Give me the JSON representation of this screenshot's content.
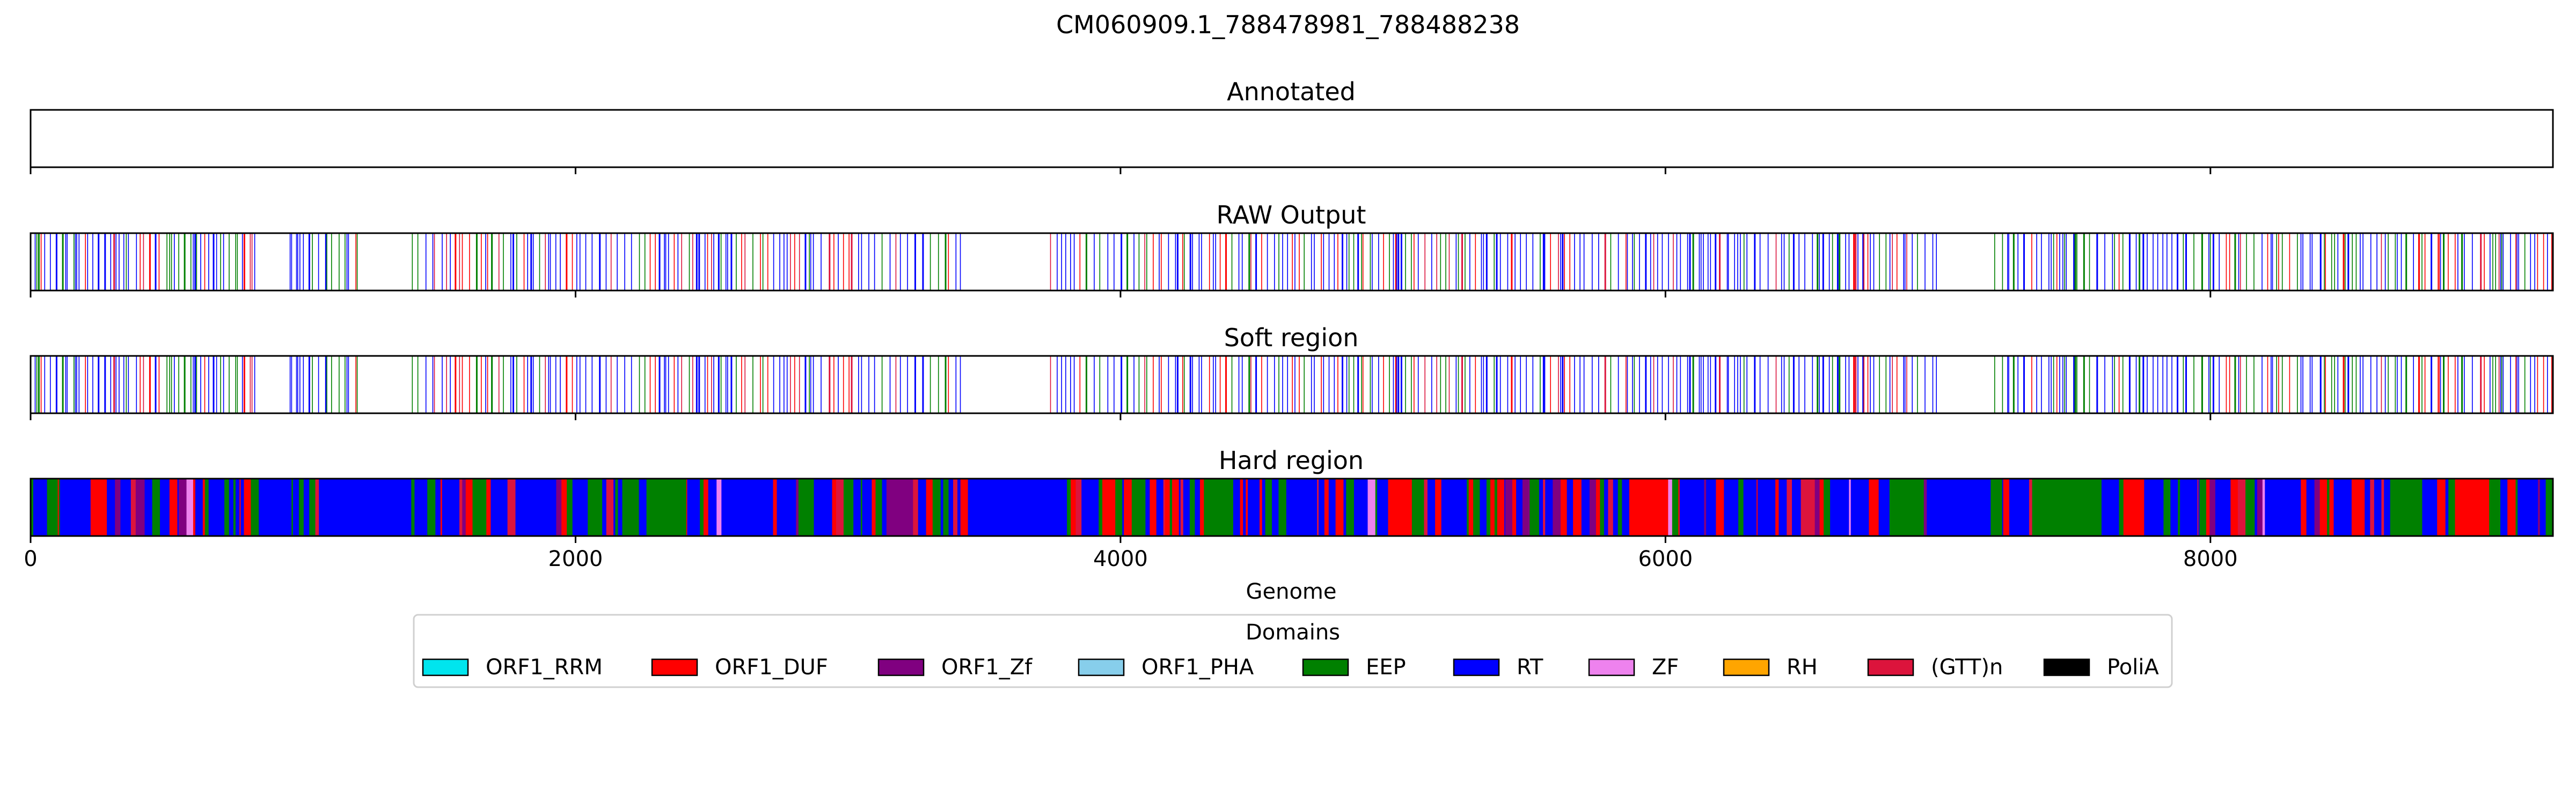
{
  "chart_data": {
    "type": "track",
    "title": "CM060909.1_788478981_788488238",
    "xlabel": "Genome",
    "xlim": [
      0,
      9257
    ],
    "x_ticks": [
      0,
      2000,
      4000,
      6000,
      8000
    ],
    "x_tick_labels": [
      "0",
      "2000",
      "4000",
      "6000",
      "8000"
    ],
    "grid": false,
    "tracks": [
      {
        "title": "Annotated",
        "mode": "none"
      },
      {
        "title": "RAW Output",
        "mode": "sparse",
        "seed": 11
      },
      {
        "title": "Soft region",
        "mode": "sparse",
        "seed": 11
      },
      {
        "title": "Hard region",
        "mode": "dense",
        "seed": 29
      }
    ],
    "gaps": [
      [
        830,
        940
      ],
      [
        1220,
        1380
      ],
      [
        3430,
        3740
      ],
      [
        7000,
        7190
      ]
    ],
    "legend": {
      "title": "Domains",
      "placement": "bottom-center",
      "entries": [
        {
          "label": "ORF1_RRM",
          "color": "#00e5ee"
        },
        {
          "label": "ORF1_DUF",
          "color": "#ff0000"
        },
        {
          "label": "ORF1_Zf",
          "color": "#800080"
        },
        {
          "label": "ORF1_PHA",
          "color": "#87ceeb"
        },
        {
          "label": "EEP",
          "color": "#008000"
        },
        {
          "label": "RT",
          "color": "#0000ff"
        },
        {
          "label": "ZF",
          "color": "#ee82ee"
        },
        {
          "label": "RH",
          "color": "#ffa500"
        },
        {
          "label": "(GTT)n",
          "color": "#dc143c"
        },
        {
          "label": "PoliA",
          "color": "#000000"
        }
      ]
    }
  }
}
